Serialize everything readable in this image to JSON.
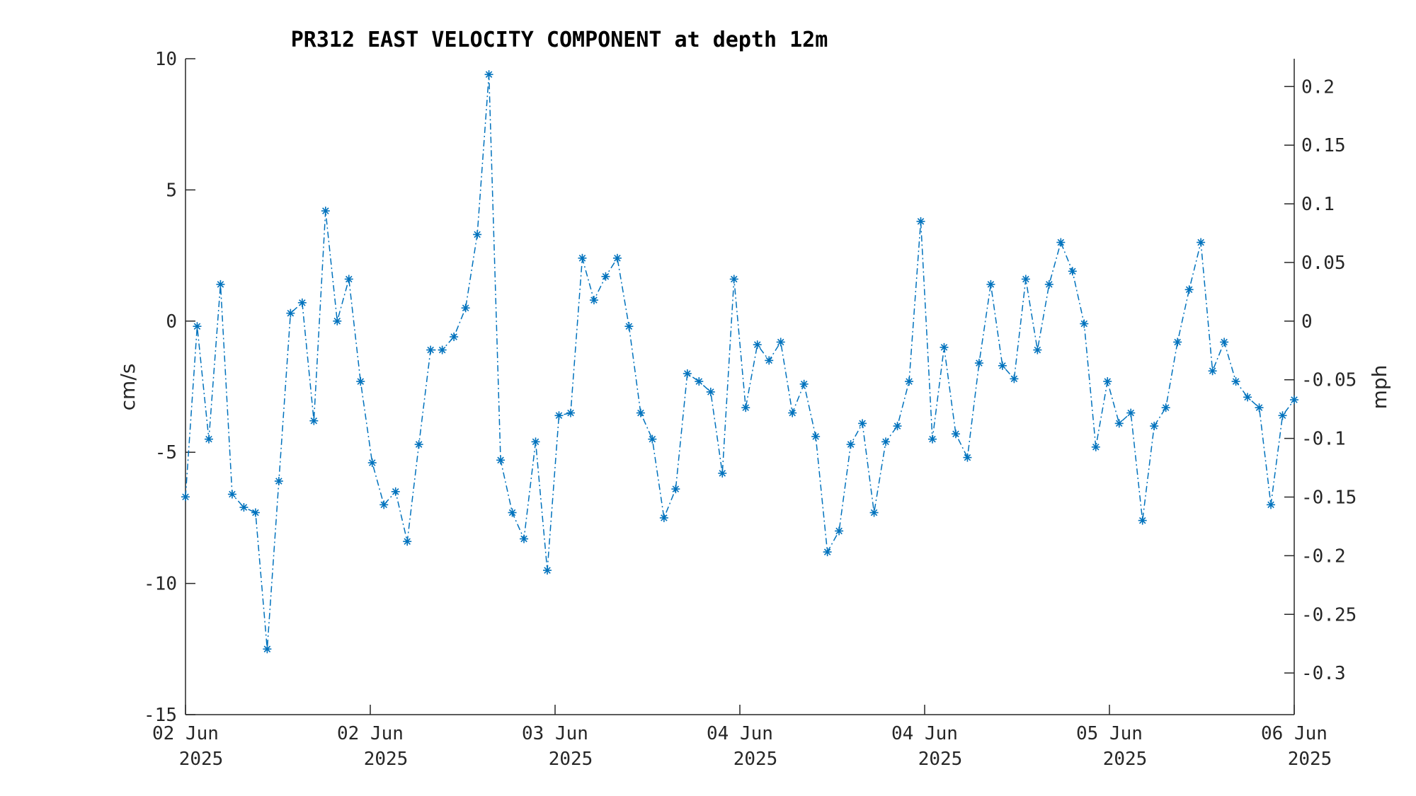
{
  "chart_data": {
    "type": "line",
    "title": "PR312 EAST VELOCITY COMPONENT at depth 12m",
    "ylabel": "cm/s",
    "y2label": "mph",
    "ylim": [
      -15,
      10
    ],
    "y2lim": [
      -0.3355,
      0.2237
    ],
    "yticks": [
      "10",
      "5",
      "0",
      "-5",
      "-10",
      "-15"
    ],
    "y2ticks": [
      "0.2",
      "0.15",
      "0.1",
      "0.05",
      "0",
      "-0.05",
      "-0.1",
      "-0.15",
      "-0.2",
      "-0.25",
      "-0.3"
    ],
    "xticks": [
      {
        "line1": "02 Jun",
        "line2": "2025"
      },
      {
        "line1": "02 Jun",
        "line2": "2025"
      },
      {
        "line1": "03 Jun",
        "line2": "2025"
      },
      {
        "line1": "04 Jun",
        "line2": "2025"
      },
      {
        "line1": "04 Jun",
        "line2": "2025"
      },
      {
        "line1": "05 Jun",
        "line2": "2025"
      },
      {
        "line1": "06 Jun",
        "line2": "2025"
      }
    ],
    "line_style": "dash-dot",
    "marker": "asterisk",
    "color": "#0072BD",
    "grid": false,
    "series": [
      {
        "values": [
          -6.7,
          -0.2,
          -4.5,
          1.4,
          -6.6,
          -7.1,
          -7.3,
          -12.5,
          -6.1,
          0.3,
          0.7,
          -3.8,
          4.2,
          0.0,
          1.6,
          -2.3,
          -5.4,
          -7.0,
          -6.5,
          -8.4,
          -4.7,
          -1.1,
          -1.1,
          -0.6,
          0.5,
          3.3,
          9.4,
          -5.3,
          -7.3,
          -8.3,
          -4.6,
          -9.5,
          -3.6,
          -3.5,
          2.4,
          0.8,
          1.7,
          2.4,
          -0.2,
          -3.5,
          -4.5,
          -7.5,
          -6.4,
          -2.0,
          -2.3,
          -2.7,
          -5.8,
          1.6,
          -3.3,
          -0.9,
          -1.5,
          -0.8,
          -3.5,
          -2.4,
          -4.4,
          -8.8,
          -8.0,
          -4.7,
          -3.9,
          -7.3,
          -4.6,
          -4.0,
          -2.3,
          3.8,
          -4.5,
          -1.0,
          -4.3,
          -5.2,
          -1.6,
          1.4,
          -1.7,
          -2.2,
          1.6,
          -1.1,
          1.4,
          3.0,
          1.9,
          -0.1,
          -4.8,
          -2.3,
          -3.9,
          -3.5,
          -7.6,
          -4.0,
          -3.3,
          -0.8,
          1.2,
          3.0,
          -1.9,
          -0.8,
          -2.3,
          -2.9,
          -3.3,
          -7.0,
          -3.6,
          -3.0
        ]
      }
    ]
  }
}
